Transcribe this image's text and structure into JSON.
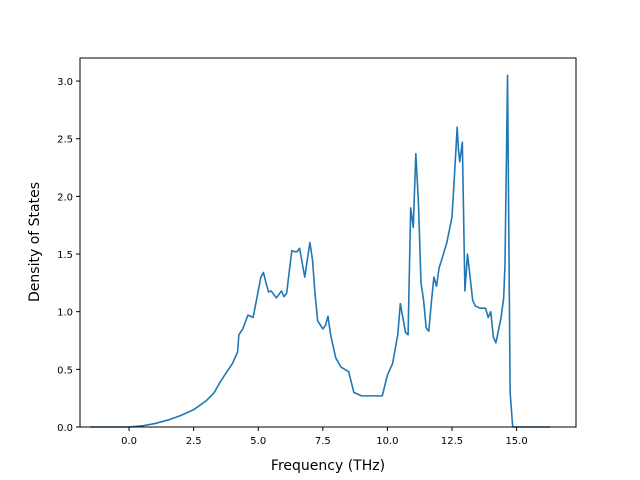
{
  "chart_data": {
    "type": "line",
    "title": "",
    "xlabel": "Frequency (THz)",
    "ylabel": "Density of States",
    "xlim": [
      -1.9,
      17.3
    ],
    "ylim": [
      0.0,
      3.2
    ],
    "x_ticks": [
      0.0,
      2.5,
      5.0,
      7.5,
      10.0,
      12.5,
      15.0
    ],
    "x_tick_labels": [
      "0.0",
      "2.5",
      "5.0",
      "7.5",
      "10.0",
      "12.5",
      "15.0"
    ],
    "y_ticks": [
      0.0,
      0.5,
      1.0,
      1.5,
      2.0,
      2.5,
      3.0
    ],
    "y_tick_labels": [
      "0.0",
      "0.5",
      "1.0",
      "1.5",
      "2.0",
      "2.5",
      "3.0"
    ],
    "grid": false,
    "legend": "none",
    "series": [
      {
        "color": "#1f77b4",
        "x": [
          -1.5,
          -0.5,
          0.0,
          0.5,
          1.0,
          1.5,
          2.0,
          2.5,
          3.0,
          3.3,
          3.5,
          3.7,
          4.0,
          4.2,
          4.25,
          4.4,
          4.6,
          4.8,
          5.0,
          5.1,
          5.2,
          5.3,
          5.4,
          5.5,
          5.7,
          5.9,
          6.0,
          6.1,
          6.2,
          6.3,
          6.4,
          6.5,
          6.6,
          6.8,
          6.9,
          7.0,
          7.1,
          7.2,
          7.3,
          7.5,
          7.6,
          7.7,
          7.8,
          8.0,
          8.2,
          8.5,
          8.7,
          9.0,
          9.5,
          9.8,
          10.0,
          10.2,
          10.4,
          10.5,
          10.7,
          10.8,
          10.9,
          11.0,
          11.1,
          11.2,
          11.3,
          11.4,
          11.5,
          11.6,
          11.7,
          11.8,
          11.9,
          12.0,
          12.1,
          12.3,
          12.5,
          12.6,
          12.7,
          12.75,
          12.8,
          12.9,
          13.0,
          13.1,
          13.2,
          13.3,
          13.4,
          13.6,
          13.8,
          13.9,
          14.0,
          14.1,
          14.2,
          14.4,
          14.5,
          14.55,
          14.65,
          14.75,
          14.85,
          15.0,
          16.0,
          16.3
        ],
        "y": [
          0.0,
          0.0,
          0.0,
          0.01,
          0.03,
          0.06,
          0.1,
          0.15,
          0.23,
          0.3,
          0.38,
          0.45,
          0.55,
          0.65,
          0.8,
          0.85,
          0.97,
          0.95,
          1.18,
          1.3,
          1.34,
          1.25,
          1.17,
          1.18,
          1.12,
          1.18,
          1.13,
          1.16,
          1.35,
          1.53,
          1.52,
          1.52,
          1.55,
          1.3,
          1.45,
          1.6,
          1.45,
          1.15,
          0.92,
          0.85,
          0.88,
          0.96,
          0.8,
          0.6,
          0.52,
          0.48,
          0.3,
          0.27,
          0.27,
          0.27,
          0.45,
          0.55,
          0.8,
          1.07,
          0.82,
          0.8,
          1.9,
          1.73,
          2.37,
          1.95,
          1.25,
          1.1,
          0.86,
          0.83,
          1.08,
          1.3,
          1.22,
          1.38,
          1.45,
          1.6,
          1.82,
          2.2,
          2.6,
          2.4,
          2.3,
          2.47,
          1.18,
          1.5,
          1.3,
          1.1,
          1.05,
          1.03,
          1.03,
          0.95,
          1.0,
          0.78,
          0.73,
          0.95,
          1.12,
          1.4,
          3.05,
          0.3,
          0.0,
          0.0,
          0.0,
          0.0
        ]
      }
    ]
  }
}
